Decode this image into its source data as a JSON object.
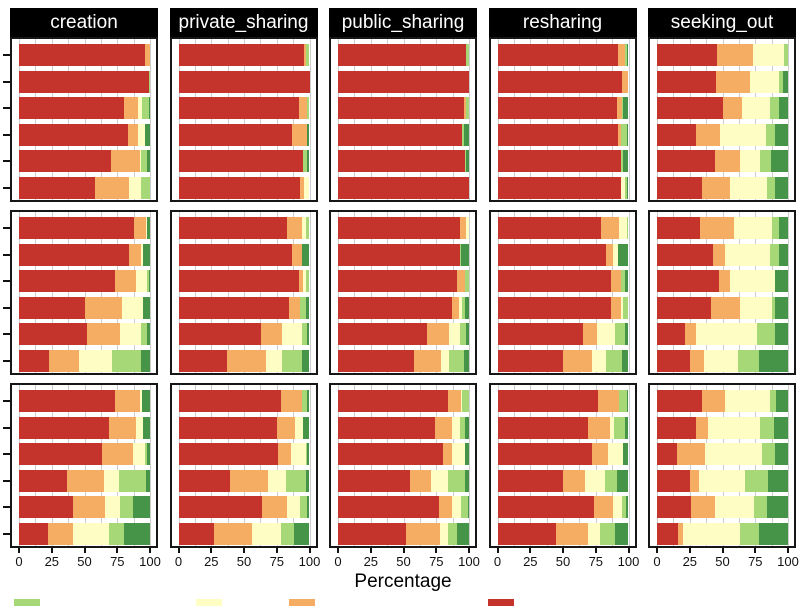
{
  "chart_data": {
    "type": "bar",
    "variant": "horizontal_stacked_percent_faceted",
    "xlabel": "Percentage",
    "x_ticks": [
      0,
      25,
      50,
      75,
      100
    ],
    "xlim": [
      0,
      100
    ],
    "grid": "vertical light-gray lines every 12.5 behind bars",
    "legend_position": "bottom (cropped: only tops of swatches visible, labels cut off)",
    "facet_columns": [
      "creation",
      "private_sharing",
      "public_sharing",
      "resharing",
      "seeking_out"
    ],
    "facet_rows": 3,
    "bars_per_facet": 6,
    "y_axis_note": "y category labels cropped off left edge; only tick marks visible",
    "segment_order": [
      "dark_red",
      "orange",
      "pale_yellow",
      "light_green",
      "dark_green"
    ],
    "colors": {
      "dark_red": "#c5342c",
      "orange": "#f4ad63",
      "pale_yellow": "#fdfdc4",
      "light_green": "#a7d878",
      "dark_green": "#459447"
    },
    "panels": {
      "creation": [
        [
          [
            96,
            4,
            0,
            0,
            0
          ],
          [
            99,
            0,
            0,
            1,
            0
          ],
          [
            80,
            11,
            3,
            5,
            1
          ],
          [
            83,
            8,
            5,
            0,
            4
          ],
          [
            70,
            22,
            1,
            5,
            2
          ],
          [
            58,
            26,
            9,
            7,
            0
          ]
        ],
        [
          [
            88,
            9,
            1,
            0,
            2
          ],
          [
            84,
            9,
            2,
            0,
            5
          ],
          [
            73,
            16,
            9,
            1,
            1
          ],
          [
            50,
            29,
            16,
            0,
            5
          ],
          [
            52,
            25,
            16,
            5,
            2
          ],
          [
            23,
            23,
            25,
            22,
            7
          ]
        ],
        [
          [
            73,
            19,
            2,
            0,
            6
          ],
          [
            69,
            20,
            6,
            0,
            5
          ],
          [
            63,
            24,
            9,
            2,
            2
          ],
          [
            37,
            28,
            11,
            21,
            3
          ],
          [
            41,
            25,
            11,
            10,
            13
          ],
          [
            22,
            19,
            28,
            11,
            20
          ]
        ]
      ],
      "private_sharing": [
        [
          [
            96,
            1,
            0,
            3,
            0
          ],
          [
            100,
            0,
            0,
            0,
            0
          ],
          [
            92,
            6,
            0,
            2,
            0
          ],
          [
            87,
            11,
            0,
            0,
            2
          ],
          [
            95,
            0,
            0,
            3,
            2
          ],
          [
            93,
            3,
            4,
            0,
            0
          ]
        ],
        [
          [
            83,
            11,
            3,
            3,
            0
          ],
          [
            87,
            7,
            0,
            0,
            6
          ],
          [
            92,
            3,
            2,
            3,
            0
          ],
          [
            84,
            9,
            0,
            4,
            3
          ],
          [
            63,
            16,
            15,
            4,
            2
          ],
          [
            37,
            30,
            12,
            15,
            6
          ]
        ],
        [
          [
            78,
            16,
            0,
            4,
            2
          ],
          [
            75,
            14,
            6,
            0,
            5
          ],
          [
            76,
            10,
            11,
            1,
            2
          ],
          [
            39,
            29,
            14,
            15,
            3
          ],
          [
            64,
            19,
            10,
            5,
            2
          ],
          [
            27,
            29,
            22,
            10,
            12
          ]
        ]
      ],
      "public_sharing": [
        [
          [
            98,
            0,
            0,
            2,
            0
          ],
          [
            100,
            0,
            0,
            0,
            0
          ],
          [
            96,
            2,
            0,
            2,
            0
          ],
          [
            95,
            0,
            0,
            1,
            4
          ],
          [
            97,
            0,
            0,
            1,
            2
          ],
          [
            100,
            0,
            0,
            0,
            0
          ]
        ],
        [
          [
            93,
            5,
            2,
            0,
            0
          ],
          [
            93,
            0,
            0,
            1,
            6
          ],
          [
            91,
            6,
            0,
            3,
            0
          ],
          [
            87,
            5,
            3,
            2,
            3
          ],
          [
            68,
            17,
            8,
            5,
            2
          ],
          [
            58,
            21,
            6,
            11,
            4
          ]
        ],
        [
          [
            84,
            10,
            1,
            5,
            0
          ],
          [
            74,
            13,
            6,
            4,
            3
          ],
          [
            80,
            7,
            10,
            0,
            3
          ],
          [
            55,
            16,
            13,
            13,
            3
          ],
          [
            77,
            10,
            7,
            5,
            1
          ],
          [
            52,
            26,
            6,
            7,
            9
          ]
        ]
      ],
      "resharing": [
        [
          [
            92,
            5,
            0,
            2,
            1
          ],
          [
            95,
            5,
            0,
            0,
            0
          ],
          [
            91,
            4,
            0,
            1,
            4
          ],
          [
            92,
            2,
            0,
            5,
            1
          ],
          [
            94,
            0,
            0,
            2,
            4
          ],
          [
            94,
            0,
            3,
            2,
            1
          ]
        ],
        [
          [
            79,
            14,
            6,
            1,
            0
          ],
          [
            83,
            5,
            4,
            0,
            8
          ],
          [
            87,
            7,
            0,
            3,
            3
          ],
          [
            87,
            7,
            2,
            4,
            0
          ],
          [
            65,
            11,
            14,
            7,
            3
          ],
          [
            50,
            22,
            11,
            12,
            5
          ]
        ],
        [
          [
            77,
            16,
            0,
            6,
            1
          ],
          [
            69,
            17,
            3,
            8,
            3
          ],
          [
            72,
            12,
            12,
            0,
            4
          ],
          [
            50,
            17,
            15,
            9,
            9
          ],
          [
            74,
            14,
            7,
            3,
            2
          ],
          [
            45,
            24,
            9,
            12,
            10
          ]
        ]
      ],
      "seeking_out": [
        [
          [
            46,
            27,
            24,
            3,
            0
          ],
          [
            45,
            26,
            22,
            3,
            4
          ],
          [
            50,
            15,
            21,
            7,
            7
          ],
          [
            30,
            18,
            35,
            7,
            10
          ],
          [
            44,
            19,
            16,
            8,
            13
          ],
          [
            34,
            22,
            28,
            6,
            10
          ]
        ],
        [
          [
            33,
            26,
            29,
            5,
            7
          ],
          [
            43,
            9,
            34,
            7,
            7
          ],
          [
            47,
            9,
            34,
            0,
            10
          ],
          [
            41,
            22,
            25,
            2,
            10
          ],
          [
            21,
            9,
            46,
            14,
            10
          ],
          [
            25,
            11,
            26,
            16,
            22
          ]
        ],
        [
          [
            34,
            18,
            34,
            5,
            9
          ],
          [
            30,
            9,
            40,
            10,
            11
          ],
          [
            15,
            22,
            43,
            10,
            10
          ],
          [
            25,
            7,
            35,
            18,
            15
          ],
          [
            26,
            18,
            30,
            10,
            16
          ],
          [
            16,
            4,
            43,
            15,
            22
          ]
        ]
      ]
    }
  },
  "legend": {
    "swatches": [
      {
        "color": "light_green",
        "x": 14
      },
      {
        "color": "pale_yellow",
        "x": 196
      },
      {
        "color": "orange",
        "x": 289
      },
      {
        "color": "dark_red",
        "x": 488
      }
    ]
  }
}
